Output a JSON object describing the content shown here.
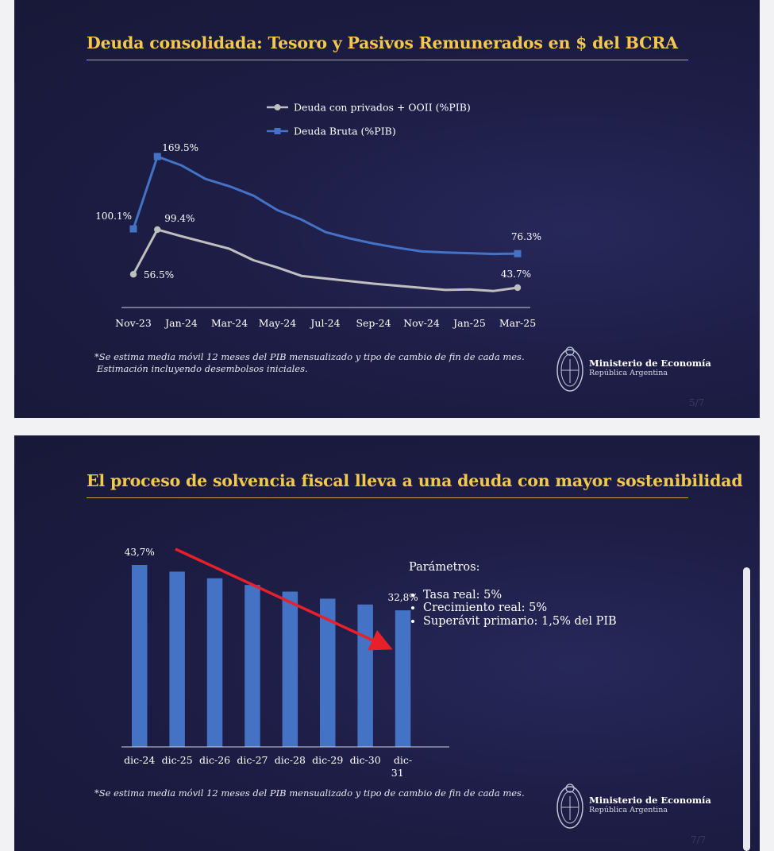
{
  "slide1": {
    "title": "Deuda consolidada: Tesoro y Pasivos Remunerados en $ del BCRA",
    "footnote_line1": "*Se estima media móvil 12 meses del PIB mensualizado y tipo de cambio de fin de cada mes.",
    "footnote_line2": "Estimación incluyendo desembolsos iniciales.",
    "ministry_name": "Ministerio de Economía",
    "ministry_sub": "República Argentina",
    "page": "5/7"
  },
  "slide2": {
    "title": "El proceso de solvencia fiscal lleva a una deuda con mayor sostenibilidad",
    "params_title": "Parámetros:",
    "params_items": [
      "Tasa real: 5%",
      "Crecimiento real: 5%",
      "Superávit primario: 1,5% del PIB"
    ],
    "footnote_line1": "*Se estima media móvil 12 meses del PIB mensualizado y tipo de cambio de fin de cada mes.",
    "ministry_name": "Ministerio de Economía",
    "ministry_sub": "República Argentina",
    "page": "7/7"
  },
  "colors": {
    "title": "#f2c94c",
    "blue_series": "#4472c4",
    "gray_series": "#bfbfbf",
    "arrow": "#e8202a"
  },
  "chart_data": [
    {
      "type": "line",
      "x": [
        "Nov-23",
        "Dec-23",
        "Jan-24",
        "Feb-24",
        "Mar-24",
        "Apr-24",
        "May-24",
        "Jun-24",
        "Jul-24",
        "Aug-24",
        "Sep-24",
        "Oct-24",
        "Nov-24",
        "Dec-24",
        "Jan-25",
        "Feb-25",
        "Mar-25"
      ],
      "tick_labels": [
        "Nov-23",
        "Jan-24",
        "Mar-24",
        "May-24",
        "Jul-24",
        "Sep-24",
        "Nov-24",
        "Jan-25",
        "Mar-25"
      ],
      "series": [
        {
          "name": "Deuda con privados + OOII (%PIB)",
          "color": "#bfbfbf",
          "values": [
            56.5,
            99.4,
            93.0,
            87.0,
            81.0,
            70.0,
            63.0,
            55.0,
            52.5,
            50.0,
            47.5,
            45.5,
            43.5,
            41.5,
            42.0,
            40.5,
            43.7
          ],
          "labels": {
            "0": "56.5%",
            "1": "99.4%",
            "16": "43.7%"
          }
        },
        {
          "name": "Deuda Bruta (%PIB)",
          "color": "#4472c4",
          "values": [
            100.1,
            169.5,
            161.0,
            148.0,
            141.0,
            132.0,
            118.0,
            109.0,
            97.0,
            91.0,
            86.0,
            82.0,
            78.5,
            77.5,
            76.8,
            76.0,
            76.3
          ],
          "labels": {
            "0": "100.1%",
            "1": "169.5%",
            "16": "76.3%"
          }
        }
      ],
      "legend": "top",
      "grid": false
    },
    {
      "type": "bar",
      "categories": [
        "dic-24",
        "dic-25",
        "dic-26",
        "dic-27",
        "dic-28",
        "dic-29",
        "dic-30",
        "dic-31"
      ],
      "tick_labels": [
        "dic-24",
        "dic-25",
        "dic-26",
        "dic-27",
        "dic-28",
        "dic-29",
        "dic-30",
        "dic-\n31"
      ],
      "values": [
        43.7,
        42.1,
        40.5,
        38.9,
        37.3,
        35.6,
        34.2,
        32.8
      ],
      "labels": {
        "0": "43,7%",
        "7": "32,8%"
      },
      "color": "#4472c4",
      "annotation": "downward red arrow from first to last bar",
      "grid": false
    }
  ]
}
